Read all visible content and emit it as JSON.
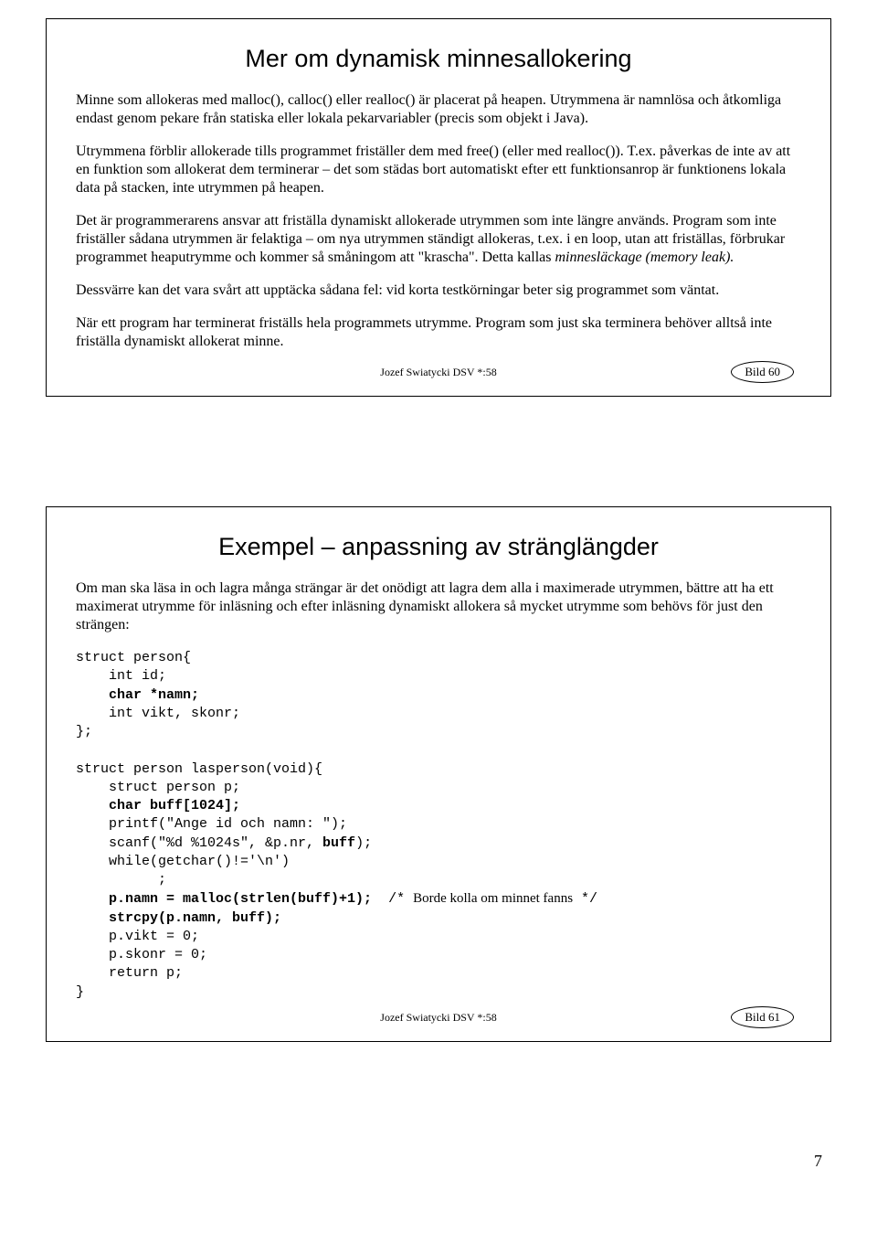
{
  "slide1": {
    "title": "Mer om dynamisk minnesallokering",
    "p1": "Minne som allokeras med malloc(), calloc() eller realloc() är placerat på heapen. Utrymmena är namnlösa och åtkomliga endast genom pekare från statiska eller lokala pekarvariabler (precis som objekt i Java).",
    "p2": "Utrymmena förblir allokerade tills programmet friställer dem med free() (eller med realloc()). T.ex. påverkas de inte av att en funktion som allokerat dem terminerar – det som städas bort automatiskt efter ett funktionsanrop är funktionens lokala data på stacken, inte utrymmen på heapen.",
    "p3a": "Det är programmerarens ansvar att friställa dynamiskt allokerade utrymmen som inte längre används. Program som inte friställer sådana utrymmen är felaktiga – om nya utrymmen ständigt allokeras, t.ex. i en loop, utan att friställas, förbrukar programmet heaputrymme och kommer så småningom att \"krascha\". Detta kallas ",
    "p3b": "minnesläckage (memory leak).",
    "p4": "Dessvärre kan det vara svårt att upptäcka sådana fel: vid korta testkörningar beter sig programmet som väntat.",
    "p5": "När ett program har terminerat friställs hela programmets utrymme. Program som just ska terminera behöver alltså inte friställa dynamiskt allokerat minne.",
    "footer": "Jozef Swiatycki DSV *:58",
    "badge": "Bild 60"
  },
  "slide2": {
    "title": "Exempel – anpassning av stränglängder",
    "intro": "Om man ska läsa in och lagra många strängar är det onödigt att lagra dem alla i maximerade utrymmen, bättre att ha ett maximerat utrymme för inläsning och efter inläsning dynamiskt allokera så mycket utrymme som behövs för just den strängen:",
    "code": {
      "l1": "struct person{",
      "l2": "    int id;",
      "l3": "    char *namn;",
      "l4": "    int vikt, skonr;",
      "l5": "};",
      "l6": "",
      "l7": "struct person lasperson(void){",
      "l8": "    struct person p;",
      "l9": "    char buff[1024];",
      "l10": "    printf(\"Ange id och namn: \");",
      "l11": "    scanf(\"%d %1024s\", &p.nr, ",
      "l11b": "buff",
      "l11c": ");",
      "l12": "    while(getchar()!='\\n')",
      "l13": "          ;",
      "l14a": "    p.namn = malloc(strlen(buff)+1);",
      "l14c": "  /* ",
      "l14d": "Borde kolla om minnet fanns",
      "l14e": " */",
      "l15": "    strcpy(p.namn, buff);",
      "l16": "    p.vikt = 0;",
      "l17": "    p.skonr = 0;",
      "l18": "    return p;",
      "l19": "}"
    },
    "footer": "Jozef Swiatycki DSV *:58",
    "badge": "Bild 61"
  },
  "page_number": "7"
}
